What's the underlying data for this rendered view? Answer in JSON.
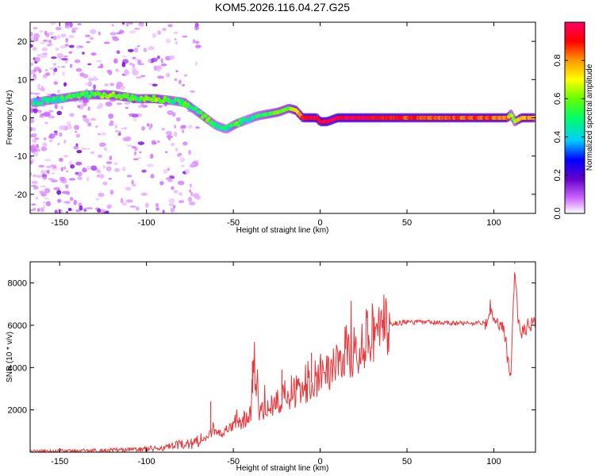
{
  "title": "KOM5.2026.116.04.27.G25",
  "chart_data": [
    {
      "type": "heatmap",
      "name": "spectrogram",
      "xlabel": "Height of straight line (km)",
      "ylabel": "Frequency (Hz)",
      "xlim": [
        -167,
        124
      ],
      "ylim": [
        -25,
        25
      ],
      "xticks": [
        -150,
        -100,
        -50,
        0,
        50,
        100
      ],
      "yticks": [
        -20,
        -10,
        0,
        10,
        20
      ],
      "colorbar": {
        "label": "Normalized spectral amplitude",
        "range": [
          0,
          1
        ],
        "ticks": [
          0.0,
          0.2,
          0.4,
          0.6,
          0.8
        ],
        "tick_labels": [
          "0.0",
          "0.2",
          "0.4",
          "0.6",
          "0.8"
        ],
        "colormap": [
          "#ffffff",
          "#cc66ff",
          "#6600cc",
          "#0000ff",
          "#00ccff",
          "#00ff66",
          "#66ff00",
          "#ffff00",
          "#ff9900",
          "#ff0000",
          "#ff0066"
        ]
      },
      "ridge": {
        "x": [
          -165,
          -150,
          -135,
          -120,
          -105,
          -95,
          -85,
          -78,
          -72,
          -66,
          -60,
          -54,
          -48,
          -42,
          -36,
          -30,
          -24,
          -18,
          -14,
          -10,
          -6,
          -2,
          0,
          4,
          10,
          20,
          40,
          60,
          80,
          100,
          108,
          110,
          112,
          116,
          124
        ],
        "freq": [
          4,
          5,
          6,
          6,
          5,
          5,
          4.5,
          4,
          2,
          0,
          -2,
          -3,
          -1.5,
          -0.5,
          0.5,
          1,
          1.5,
          2.5,
          2,
          0,
          0,
          0,
          -1,
          -1,
          0,
          0,
          0,
          0,
          0,
          0,
          0,
          1,
          -1,
          0,
          0
        ],
        "amplitude": [
          0.45,
          0.5,
          0.55,
          0.6,
          0.55,
          0.65,
          0.5,
          0.55,
          0.5,
          0.6,
          0.45,
          0.45,
          0.55,
          0.45,
          0.5,
          0.55,
          0.6,
          0.6,
          0.75,
          0.85,
          0.95,
          0.95,
          0.95,
          0.95,
          0.97,
          0.97,
          0.9,
          0.85,
          0.85,
          0.85,
          0.8,
          0.6,
          0.6,
          0.8,
          0.8
        ]
      },
      "noise_region_x": [
        -167,
        -70
      ]
    },
    {
      "type": "line",
      "name": "snr",
      "xlabel": "Height of straight line (km)",
      "ylabel": "SNR (10 * v/v)",
      "xlim": [
        -167,
        124
      ],
      "ylim": [
        0,
        9000
      ],
      "xticks": [
        -150,
        -100,
        -50,
        0,
        50,
        100
      ],
      "yticks": [
        2000,
        4000,
        6000,
        8000
      ],
      "color": "#e8363a",
      "series": [
        {
          "name": "SNR",
          "x": [
            -167,
            -150,
            -130,
            -110,
            -100,
            -90,
            -80,
            -70,
            -65,
            -62,
            -60,
            -55,
            -50,
            -45,
            -40,
            -38,
            -35,
            -30,
            -25,
            -20,
            -15,
            -10,
            -5,
            0,
            5,
            10,
            15,
            20,
            25,
            30,
            35,
            40,
            50,
            60,
            70,
            80,
            90,
            96,
            98,
            100,
            103,
            105,
            107,
            108,
            110,
            112,
            114,
            116,
            120,
            124
          ],
          "y": [
            50,
            60,
            80,
            120,
            150,
            200,
            350,
            500,
            700,
            1000,
            800,
            900,
            1300,
            1500,
            1800,
            4200,
            2000,
            2200,
            2300,
            2600,
            2800,
            3000,
            3300,
            3700,
            4000,
            4300,
            4700,
            5000,
            5400,
            5700,
            5900,
            6050,
            6150,
            6150,
            6100,
            6100,
            6100,
            6100,
            6900,
            6200,
            6000,
            5900,
            5200,
            4200,
            3800,
            8900,
            6200,
            5700,
            6000,
            6100
          ]
        }
      ],
      "spikes": [
        {
          "x": -63,
          "y": 2400
        },
        {
          "x": -39,
          "y": 4300
        },
        {
          "x": -22,
          "y": 3900
        },
        {
          "x": -5,
          "y": 4700
        },
        {
          "x": 98,
          "y": 7000
        },
        {
          "x": 112,
          "y": 9000
        }
      ]
    }
  ]
}
